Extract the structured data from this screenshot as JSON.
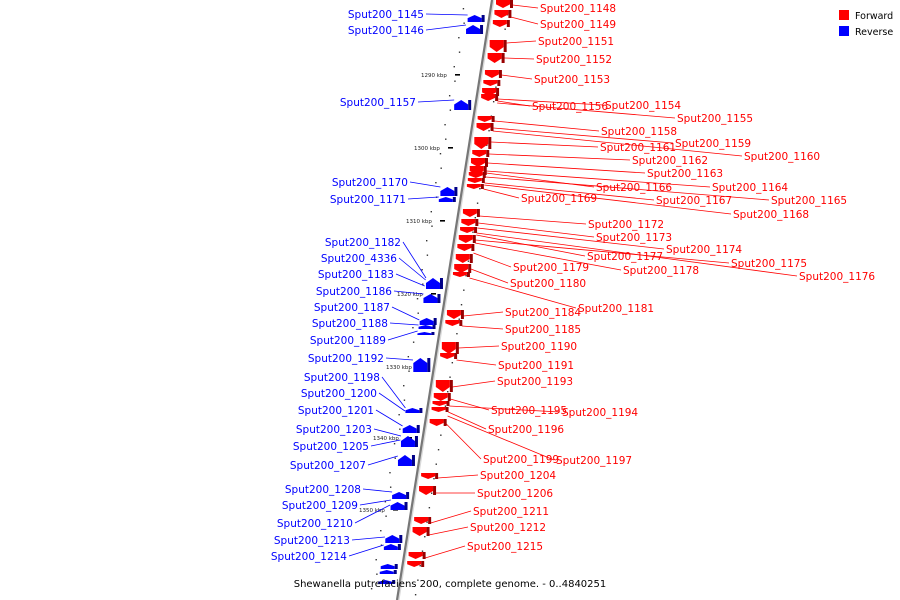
{
  "caption": "Shewanella putrefaciens 200, complete genome. - 0..4840251",
  "legend": [
    {
      "label": "Forward",
      "color": "#ff0000"
    },
    {
      "label": "Reverse",
      "color": "#0000ff"
    }
  ],
  "ticks": [
    "1290 kbp",
    "1300 kbp",
    "1310 kbp",
    "1320 kbp",
    "1330 kbp",
    "1340 kbp",
    "1350 kbp"
  ],
  "reverse_genes": [
    "Sput200_1145",
    "Sput200_1146",
    "Sput200_1157",
    "Sput200_1170",
    "Sput200_1171",
    "Sput200_1182",
    "Sput200_4336",
    "Sput200_1183",
    "Sput200_1186",
    "Sput200_1187",
    "Sput200_1188",
    "Sput200_1189",
    "Sput200_1192",
    "Sput200_1198",
    "Sput200_1200",
    "Sput200_1201",
    "Sput200_1203",
    "Sput200_1205",
    "Sput200_1207",
    "Sput200_1208",
    "Sput200_1209",
    "Sput200_1210",
    "Sput200_1213",
    "Sput200_1214"
  ],
  "forward_genes": [
    "Sput200_1148",
    "Sput200_1149",
    "Sput200_1151",
    "Sput200_1152",
    "Sput200_1153",
    "Sput200_1154",
    "Sput200_1156",
    "Sput200_1155",
    "Sput200_1158",
    "Sput200_1159",
    "Sput200_1161",
    "Sput200_1160",
    "Sput200_1162",
    "Sput200_1163",
    "Sput200_1164",
    "Sput200_1166",
    "Sput200_1165",
    "Sput200_1167",
    "Sput200_1169",
    "Sput200_1168",
    "Sput200_1172",
    "Sput200_1173",
    "Sput200_1174",
    "Sput200_1177",
    "Sput200_1175",
    "Sput200_1179",
    "Sput200_1178",
    "Sput200_1176",
    "Sput200_1180",
    "Sput200_1181",
    "Sput200_1184",
    "Sput200_1185",
    "Sput200_1190",
    "Sput200_1191",
    "Sput200_1193",
    "Sput200_1195",
    "Sput200_1194",
    "Sput200_1196",
    "Sput200_1199",
    "Sput200_1197",
    "Sput200_1204",
    "Sput200_1206",
    "Sput200_1211",
    "Sput200_1212",
    "Sput200_1215"
  ]
}
